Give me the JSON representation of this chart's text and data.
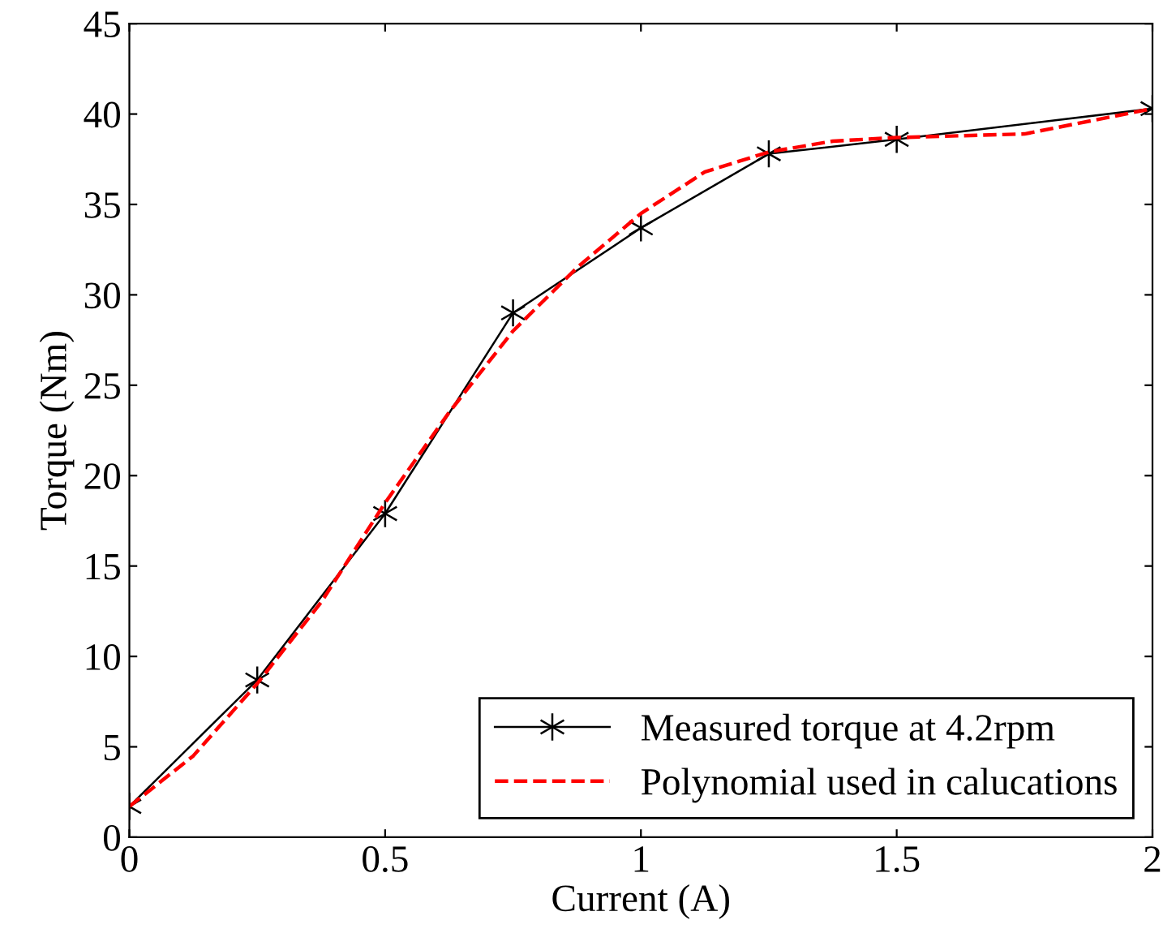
{
  "chart_data": {
    "type": "line",
    "xlabel": "Current (A)",
    "ylabel": "Torque (Nm)",
    "xlim": [
      0,
      2
    ],
    "ylim": [
      0,
      45
    ],
    "xticks": [
      0,
      0.5,
      1,
      1.5,
      2
    ],
    "yticks": [
      0,
      5,
      10,
      15,
      20,
      25,
      30,
      35,
      40,
      45
    ],
    "grid": false,
    "legend": "bottom right",
    "series": [
      {
        "name": "Measured torque at 4.2rpm",
        "color": "#000000",
        "marker": "cross",
        "line_style": "solid",
        "x": [
          0,
          0.25,
          0.5,
          0.75,
          1.0,
          1.25,
          1.5,
          2.0
        ],
        "values": [
          1.7,
          8.7,
          17.9,
          29.0,
          33.7,
          37.8,
          38.6,
          40.3
        ]
      },
      {
        "name": "Polynomial used in calucations",
        "color": "#ff0000",
        "marker": "none",
        "line_style": "dashed",
        "x": [
          0,
          0.125,
          0.25,
          0.375,
          0.5,
          0.625,
          0.75,
          0.875,
          1.0,
          1.125,
          1.25,
          1.375,
          1.5,
          1.75,
          2.0
        ],
        "values": [
          1.7,
          4.5,
          8.5,
          13.0,
          18.5,
          23.5,
          28.0,
          31.5,
          34.5,
          36.8,
          37.9,
          38.5,
          38.7,
          38.9,
          40.3
        ]
      }
    ]
  }
}
